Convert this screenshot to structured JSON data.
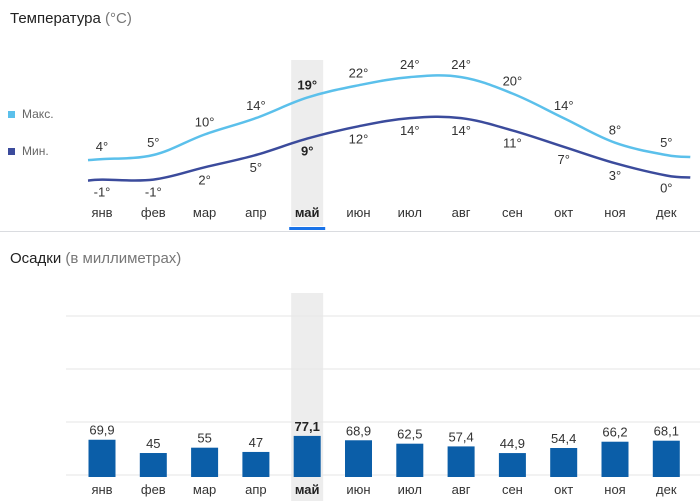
{
  "temperature": {
    "title": "Температура",
    "unit": "(°C)",
    "legend": {
      "max_label": "Макс.",
      "min_label": "Мин."
    },
    "colors": {
      "max": "#5bc0eb",
      "min": "#3b4b9c"
    }
  },
  "precipitation": {
    "title": "Осадки",
    "unit": "(в миллиметрах)",
    "bar_color": "#0b5ea8"
  },
  "selected_month_index": 4,
  "chart_data": [
    {
      "type": "line",
      "title": "Температура (°C)",
      "categories": [
        "янв",
        "фев",
        "мар",
        "апр",
        "май",
        "июн",
        "июл",
        "авг",
        "сен",
        "окт",
        "ноя",
        "дек"
      ],
      "series": [
        {
          "name": "Макс.",
          "values": [
            4,
            5,
            10,
            14,
            19,
            22,
            24,
            24,
            20,
            14,
            8,
            5
          ]
        },
        {
          "name": "Мин.",
          "values": [
            -1,
            -1,
            2,
            5,
            9,
            12,
            14,
            14,
            11,
            7,
            3,
            0
          ]
        }
      ],
      "value_labels": {
        "max": [
          "4°",
          "5°",
          "10°",
          "14°",
          "19°",
          "22°",
          "24°",
          "24°",
          "20°",
          "14°",
          "8°",
          "5°"
        ],
        "min": [
          "-1°",
          "-1°",
          "2°",
          "5°",
          "9°",
          "12°",
          "14°",
          "14°",
          "11°",
          "7°",
          "3°",
          "0°"
        ]
      }
    },
    {
      "type": "bar",
      "title": "Осадки (в миллиметрах)",
      "categories": [
        "янв",
        "фев",
        "мар",
        "апр",
        "май",
        "июн",
        "июл",
        "авг",
        "сен",
        "окт",
        "ноя",
        "дек"
      ],
      "values": [
        69.9,
        45,
        55,
        47,
        77.1,
        68.9,
        62.5,
        57.4,
        44.9,
        54.4,
        66.2,
        68.1
      ],
      "value_labels": [
        "69,9",
        "45",
        "55",
        "47",
        "77,1",
        "68,9",
        "62,5",
        "57,4",
        "44,9",
        "54,4",
        "66,2",
        "68,1"
      ],
      "grid": true
    }
  ]
}
